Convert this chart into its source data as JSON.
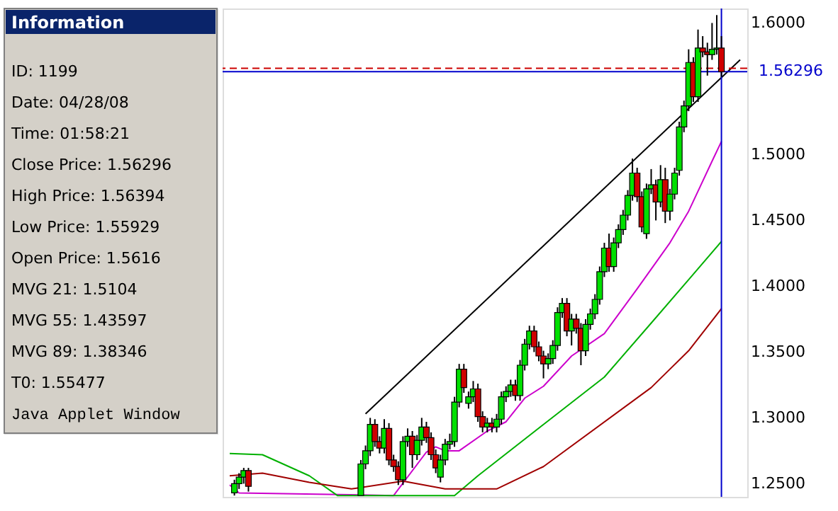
{
  "chart_data": [
    {
      "type": "other",
      "title": "Information",
      "annotations": [
        "ID: 1199",
        "Date: 04/28/08",
        "Time: 01:58:21",
        "Close Price: 1.56296",
        "High Price: 1.56394",
        "Low Price: 1.55929",
        "Open Price: 1.5616",
        "MVG 21: 1.5104",
        "MVG 55: 1.43597",
        "MVG 89: 1.38346",
        "T0: 1.55477",
        "Java Applet Window"
      ]
    },
    {
      "type": "candlestick",
      "categories": [
        null,
        null,
        null,
        null,
        null,
        null,
        null,
        null,
        null,
        null,
        null,
        null,
        null,
        null,
        null,
        null,
        null,
        null,
        null,
        null,
        null,
        null,
        null,
        null,
        null,
        null,
        null,
        null,
        null,
        null,
        null,
        null,
        null,
        null,
        null,
        null,
        null,
        null,
        null,
        null,
        null,
        null,
        null,
        null,
        null,
        null,
        null,
        null,
        null,
        null,
        null,
        null,
        null,
        null,
        null,
        null,
        null,
        null,
        null,
        null,
        null,
        null,
        null,
        null,
        null,
        null,
        null,
        null,
        null,
        null,
        null,
        null,
        null,
        null,
        null,
        null,
        null,
        null,
        null,
        null,
        null,
        null,
        null,
        null,
        null,
        null,
        null,
        null,
        null,
        null,
        null,
        null,
        null,
        null,
        null,
        null,
        null,
        null,
        null,
        null,
        null,
        null,
        null,
        null,
        null,
        null,
        null,
        null,
        null,
        null
      ],
      "ohlc": [
        null,
        [
          1.243,
          1.253,
          1.241,
          1.25
        ],
        [
          1.25,
          1.258,
          1.246,
          1.255
        ],
        [
          1.255,
          1.262,
          1.25,
          1.26
        ],
        [
          1.26,
          1.262,
          1.244,
          1.248
        ],
        null,
        null,
        null,
        null,
        null,
        null,
        null,
        null,
        null,
        null,
        null,
        null,
        null,
        null,
        null,
        null,
        null,
        null,
        null,
        null,
        null,
        null,
        null,
        [
          1.241,
          1.268,
          1.241,
          1.265
        ],
        [
          1.265,
          1.279,
          1.261,
          1.275
        ],
        [
          1.275,
          1.3,
          1.271,
          1.295
        ],
        [
          1.295,
          1.299,
          1.278,
          1.282
        ],
        [
          1.282,
          1.286,
          1.273,
          1.277
        ],
        [
          1.277,
          1.299,
          1.273,
          1.292
        ],
        [
          1.292,
          1.296,
          1.264,
          1.268
        ],
        [
          1.268,
          1.272,
          1.259,
          1.263
        ],
        [
          1.263,
          1.267,
          1.249,
          1.253
        ],
        [
          1.253,
          1.286,
          1.249,
          1.282
        ],
        [
          1.282,
          1.292,
          1.278,
          1.286
        ],
        [
          1.286,
          1.29,
          1.262,
          1.272
        ],
        [
          1.272,
          1.287,
          1.268,
          1.283
        ],
        [
          1.283,
          1.3,
          1.279,
          1.293
        ],
        [
          1.293,
          1.297,
          1.281,
          1.285
        ],
        [
          1.285,
          1.289,
          1.268,
          1.272
        ],
        [
          1.272,
          1.276,
          1.258,
          1.262
        ],
        [
          1.255,
          1.272,
          1.251,
          1.268
        ],
        [
          1.268,
          1.284,
          1.264,
          1.28
        ],
        [
          1.28,
          1.288,
          1.276,
          1.282
        ],
        [
          1.282,
          1.316,
          1.278,
          1.312
        ],
        [
          1.312,
          1.341,
          1.308,
          1.337
        ],
        [
          1.337,
          1.341,
          1.319,
          1.323
        ],
        [
          1.311,
          1.32,
          1.307,
          1.316
        ],
        [
          1.316,
          1.328,
          1.312,
          1.322
        ],
        [
          1.322,
          1.326,
          1.297,
          1.301
        ],
        [
          1.301,
          1.305,
          1.289,
          1.293
        ],
        [
          1.293,
          1.3,
          1.289,
          1.296
        ],
        [
          1.296,
          1.3,
          1.289,
          1.293
        ],
        [
          1.293,
          1.303,
          1.289,
          1.299
        ],
        [
          1.299,
          1.32,
          1.295,
          1.316
        ],
        [
          1.316,
          1.324,
          1.312,
          1.32
        ],
        [
          1.32,
          1.329,
          1.316,
          1.325
        ],
        [
          1.325,
          1.329,
          1.313,
          1.317
        ],
        [
          1.317,
          1.344,
          1.313,
          1.34
        ],
        [
          1.34,
          1.36,
          1.336,
          1.356
        ],
        [
          1.356,
          1.37,
          1.352,
          1.366
        ],
        [
          1.366,
          1.37,
          1.35,
          1.354
        ],
        [
          1.354,
          1.358,
          1.343,
          1.347
        ],
        [
          1.347,
          1.351,
          1.33,
          1.341
        ],
        [
          1.341,
          1.349,
          1.337,
          1.345
        ],
        [
          1.345,
          1.359,
          1.341,
          1.355
        ],
        [
          1.355,
          1.384,
          1.351,
          1.38
        ],
        [
          1.38,
          1.391,
          1.376,
          1.387
        ],
        [
          1.387,
          1.391,
          1.362,
          1.366
        ],
        [
          1.366,
          1.379,
          1.355,
          1.375
        ],
        [
          1.375,
          1.379,
          1.364,
          1.368
        ],
        [
          1.368,
          1.372,
          1.34,
          1.351
        ],
        [
          1.351,
          1.375,
          1.347,
          1.371
        ],
        [
          1.371,
          1.383,
          1.367,
          1.379
        ],
        [
          1.379,
          1.394,
          1.375,
          1.39
        ],
        [
          1.39,
          1.415,
          1.386,
          1.411
        ],
        [
          1.411,
          1.433,
          1.407,
          1.429
        ],
        [
          1.429,
          1.44,
          1.411,
          1.415
        ],
        [
          1.415,
          1.437,
          1.411,
          1.433
        ],
        [
          1.433,
          1.447,
          1.429,
          1.443
        ],
        [
          1.443,
          1.458,
          1.439,
          1.454
        ],
        [
          1.454,
          1.473,
          1.45,
          1.469
        ],
        [
          1.469,
          1.497,
          1.465,
          1.486
        ],
        [
          1.486,
          1.49,
          1.464,
          1.468
        ],
        [
          1.468,
          1.472,
          1.441,
          1.445
        ],
        [
          1.44,
          1.478,
          1.436,
          1.474
        ],
        [
          1.474,
          1.489,
          1.47,
          1.477
        ],
        [
          1.477,
          1.481,
          1.45,
          1.464
        ],
        [
          1.464,
          1.492,
          1.46,
          1.481
        ],
        [
          1.481,
          1.49,
          1.448,
          1.457
        ],
        [
          1.457,
          1.474,
          1.45,
          1.47
        ],
        [
          1.47,
          1.49,
          1.466,
          1.486
        ],
        [
          1.488,
          1.525,
          1.484,
          1.521
        ],
        [
          1.521,
          1.541,
          1.517,
          1.537
        ],
        [
          1.537,
          1.58,
          1.533,
          1.57
        ],
        [
          1.57,
          1.574,
          1.54,
          1.544
        ],
        [
          1.544,
          1.595,
          1.54,
          1.581
        ],
        [
          1.581,
          1.59,
          1.574,
          1.578
        ],
        [
          1.578,
          1.585,
          1.56,
          1.576
        ],
        [
          1.576,
          1.6,
          1.572,
          1.58
        ],
        [
          1.58,
          1.606,
          1.576,
          1.581
        ],
        [
          1.581,
          1.59,
          1.559,
          1.563
        ],
        null,
        null,
        null,
        null
      ],
      "colors": [
        null,
        "#00e000",
        "#00e000",
        "#00e000",
        "#d00000",
        null,
        null,
        null,
        null,
        null,
        null,
        null,
        null,
        null,
        null,
        null,
        null,
        null,
        null,
        null,
        null,
        null,
        null,
        null,
        null,
        null,
        null,
        null,
        "#00e000",
        "#00e000",
        "#00e000",
        "#d00000",
        "#d00000",
        "#00e000",
        "#d00000",
        "#d00000",
        "#d00000",
        "#00e000",
        "#00e000",
        "#d00000",
        "#00e000",
        "#00e000",
        "#d00000",
        "#d00000",
        "#d00000",
        "#00e000",
        "#00e000",
        "#00e000",
        "#00e000",
        "#00e000",
        "#d00000",
        "#00e000",
        "#00e000",
        "#d00000",
        "#d00000",
        "#00e000",
        "#d00000",
        "#00e000",
        "#00e000",
        "#00e000",
        "#00e000",
        "#d00000",
        "#00e000",
        "#00e000",
        "#00e000",
        "#d00000",
        "#d00000",
        "#d00000",
        "#00e000",
        "#00e000",
        "#00e000",
        "#00e000",
        "#d00000",
        "#00e000",
        "#d00000",
        "#d00000",
        "#00e000",
        "#00e000",
        "#00e000",
        "#00e000",
        "#00e000",
        "#d00000",
        "#00e000",
        "#00e000",
        "#00e000",
        "#00e000",
        "#00e000",
        "#d00000",
        "#d00000",
        "#00e000",
        "#00e000",
        "#d00000",
        "#00e000",
        "#d00000",
        "#00e000",
        "#00e000",
        "#00e000",
        "#00e000",
        "#00e000",
        "#d00000",
        "#00e000",
        "#d00000",
        "#d00000",
        "#00e000",
        "#00e000",
        "#d00000",
        null,
        null,
        null,
        null
      ],
      "series": [
        {
          "type": "line",
          "color": "#cc00cc",
          "values": [
            1.249,
            null,
            1.243,
            null,
            null,
            null,
            null,
            null,
            null,
            null,
            null,
            null,
            null,
            null,
            null,
            null,
            null,
            null,
            null,
            null,
            null,
            null,
            null,
            null,
            null,
            null,
            null,
            null,
            null,
            null,
            null,
            null,
            null,
            null,
            null,
            1.241,
            null,
            null,
            null,
            null,
            null,
            null,
            1.274,
            null,
            1.278,
            null,
            1.275,
            null,
            null,
            1.275,
            null,
            null,
            null,
            null,
            null,
            1.29,
            null,
            null,
            null,
            1.297,
            null,
            null,
            null,
            1.315,
            null,
            null,
            null,
            1.324,
            null,
            null,
            null,
            null,
            null,
            1.347,
            null,
            null,
            null,
            null,
            null,
            null,
            1.364,
            null,
            null,
            null,
            null,
            null,
            null,
            1.398,
            null,
            null,
            null,
            null,
            null,
            null,
            1.433,
            null,
            null,
            null,
            1.457,
            null,
            null,
            null,
            null,
            1.495,
            null,
            1.51,
            null,
            null,
            null,
            null
          ]
        },
        {
          "type": "line",
          "color": "#00b000",
          "values": [
            1.273,
            null,
            null,
            null,
            null,
            null,
            null,
            1.272,
            null,
            null,
            null,
            null,
            null,
            null,
            null,
            null,
            null,
            1.256,
            null,
            null,
            null,
            null,
            null,
            1.241,
            null,
            null,
            null,
            null,
            null,
            null,
            null,
            null,
            null,
            null,
            null,
            null,
            null,
            null,
            null,
            null,
            null,
            null,
            null,
            null,
            null,
            null,
            null,
            null,
            1.241,
            null,
            null,
            null,
            null,
            1.256,
            null,
            null,
            null,
            null,
            null,
            null,
            null,
            null,
            null,
            null,
            null,
            null,
            null,
            1.295,
            null,
            null,
            null,
            null,
            null,
            null,
            null,
            null,
            null,
            null,
            null,
            null,
            1.331,
            null,
            null,
            null,
            null,
            null,
            null,
            null,
            null,
            null,
            1.372,
            null,
            null,
            null,
            null,
            null,
            null,
            null,
            1.405,
            null,
            null,
            null,
            null,
            null,
            null,
            1.434,
            null,
            null,
            null,
            null
          ]
        },
        {
          "type": "line",
          "color": "#a00000",
          "values": [
            1.256,
            null,
            null,
            null,
            null,
            null,
            null,
            1.258,
            null,
            null,
            null,
            null,
            null,
            null,
            null,
            null,
            null,
            1.251,
            null,
            null,
            null,
            null,
            null,
            null,
            null,
            null,
            1.246,
            null,
            null,
            null,
            null,
            null,
            null,
            null,
            null,
            null,
            null,
            1.252,
            null,
            null,
            null,
            null,
            null,
            null,
            null,
            null,
            1.246,
            null,
            null,
            null,
            null,
            null,
            null,
            null,
            null,
            null,
            null,
            1.246,
            null,
            null,
            null,
            null,
            null,
            null,
            null,
            null,
            null,
            1.263,
            null,
            null,
            null,
            null,
            null,
            null,
            null,
            null,
            null,
            null,
            null,
            null,
            null,
            null,
            null,
            null,
            null,
            null,
            null,
            null,
            null,
            null,
            1.323,
            null,
            null,
            null,
            null,
            null,
            null,
            null,
            1.351,
            null,
            null,
            null,
            null,
            null,
            null,
            1.383,
            null,
            null,
            null,
            null
          ]
        },
        {
          "type": "line",
          "color": "#000000",
          "values": [
            null,
            null,
            null,
            null,
            null,
            null,
            null,
            null,
            null,
            null,
            null,
            null,
            null,
            null,
            null,
            null,
            null,
            null,
            null,
            null,
            null,
            null,
            null,
            null,
            null,
            null,
            null,
            null,
            null,
            1.303,
            null,
            null,
            null,
            null,
            null,
            null,
            null,
            null,
            null,
            null,
            null,
            null,
            null,
            null,
            null,
            null,
            null,
            null,
            null,
            null,
            null,
            null,
            null,
            null,
            null,
            null,
            null,
            null,
            null,
            null,
            null,
            null,
            null,
            null,
            null,
            null,
            null,
            null,
            null,
            null,
            null,
            null,
            null,
            null,
            null,
            null,
            null,
            null,
            null,
            null,
            null,
            null,
            null,
            null,
            null,
            null,
            null,
            null,
            null,
            null,
            null,
            null,
            null,
            null,
            null,
            null,
            null,
            null,
            null,
            null,
            null,
            null,
            null,
            null,
            null,
            null,
            null,
            null,
            null,
            1.572
          ]
        }
      ],
      "ylim": [
        1.24,
        1.611
      ],
      "yticks": [
        {
          "value": 1.25,
          "label": "1.2500"
        },
        {
          "value": 1.3,
          "label": "1.3000"
        },
        {
          "value": 1.35,
          "label": "1.3500"
        },
        {
          "value": 1.4,
          "label": "1.4000"
        },
        {
          "value": 1.45,
          "label": "1.4500"
        },
        {
          "value": 1.5,
          "label": "1.5000"
        },
        {
          "value": 1.6,
          "label": "1.6000"
        }
      ],
      "ref_lines": [
        {
          "axis": "y",
          "value": 1.56296,
          "label": "1.56296",
          "color": "#0000cc"
        },
        {
          "axis": "y",
          "value": 1.5655,
          "color": "#cc0000",
          "line_style": "dashed"
        }
      ],
      "tick_labels": "y"
    }
  ]
}
